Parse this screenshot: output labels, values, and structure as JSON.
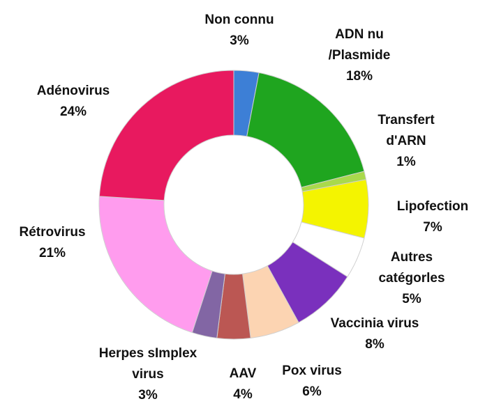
{
  "chart_data": {
    "type": "donut",
    "categories": [
      "Non connu",
      "ADN nu\n/Plasmide",
      "Transfert\nd'ARN",
      "Lipofection",
      "Autres\ncatégorles",
      "Vaccinia virus",
      "Pox virus",
      "AAV",
      "Herpes sImplex\nvirus",
      "Rétrovirus",
      "Adénovirus"
    ],
    "values": [
      3,
      18,
      1,
      7,
      5,
      8,
      6,
      4,
      3,
      21,
      24
    ],
    "value_labels": [
      "3%",
      "18%",
      "1%",
      "7%",
      "5%",
      "8%",
      "6%",
      "4%",
      "3%",
      "21%",
      "24%"
    ],
    "colors": [
      "#3d7fd6",
      "#1fa51f",
      "#a9d94c",
      "#f4f400",
      "#ffffff",
      "#7a30bd",
      "#fcd4b2",
      "#bb5753",
      "#8266a4",
      "#ff9cee",
      "#e8195f"
    ]
  }
}
